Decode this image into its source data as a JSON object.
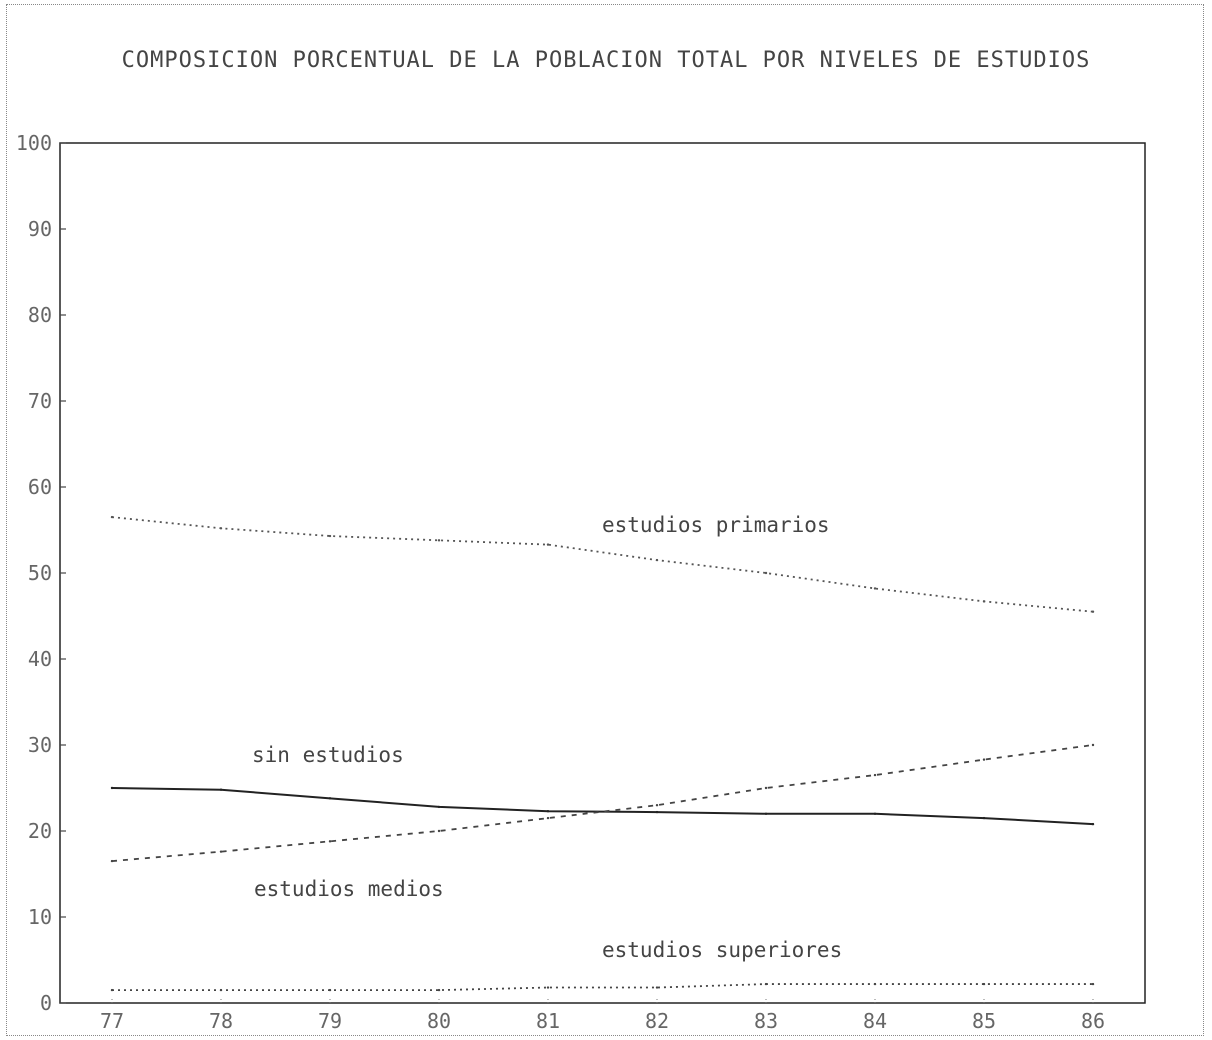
{
  "chart_data": {
    "type": "line",
    "title": "COMPOSICION PORCENTUAL DE LA POBLACION TOTAL POR NIVELES DE ESTUDIOS",
    "xlabel": "",
    "ylabel": "",
    "x": [
      "77",
      "78",
      "79",
      "80",
      "81",
      "82",
      "83",
      "84",
      "85",
      "86"
    ],
    "ylim": [
      0,
      100
    ],
    "yticks": [
      "0",
      "10",
      "20",
      "30",
      "40",
      "50",
      "60",
      "70",
      "80",
      "90",
      "100"
    ],
    "grid": false,
    "legend": "none",
    "series": [
      {
        "name": "estudios primarios",
        "values": [
          56.5,
          55.2,
          54.3,
          53.8,
          53.3,
          51.5,
          50.0,
          48.2,
          46.7,
          45.5
        ],
        "style": "dotted",
        "color": "#555555"
      },
      {
        "name": "sin estudios",
        "values": [
          25.0,
          24.8,
          23.8,
          22.8,
          22.3,
          22.2,
          22.0,
          22.0,
          21.5,
          20.8
        ],
        "style": "solid",
        "color": "#222222"
      },
      {
        "name": "estudios medios",
        "values": [
          16.5,
          17.6,
          18.8,
          20.0,
          21.5,
          23.0,
          25.0,
          26.5,
          28.3,
          30.0
        ],
        "style": "dashed",
        "color": "#444444"
      },
      {
        "name": "estudios superiores",
        "values": [
          1.5,
          1.5,
          1.5,
          1.5,
          1.8,
          1.8,
          2.2,
          2.2,
          2.2,
          2.2
        ],
        "style": "dotted",
        "color": "#444444"
      }
    ],
    "annotations": [
      {
        "text": "estudios primarios",
        "series": 0
      },
      {
        "text": "sin estudios",
        "series": 1
      },
      {
        "text": "estudios medios",
        "series": 2
      },
      {
        "text": "estudios superiores",
        "series": 3
      }
    ]
  }
}
